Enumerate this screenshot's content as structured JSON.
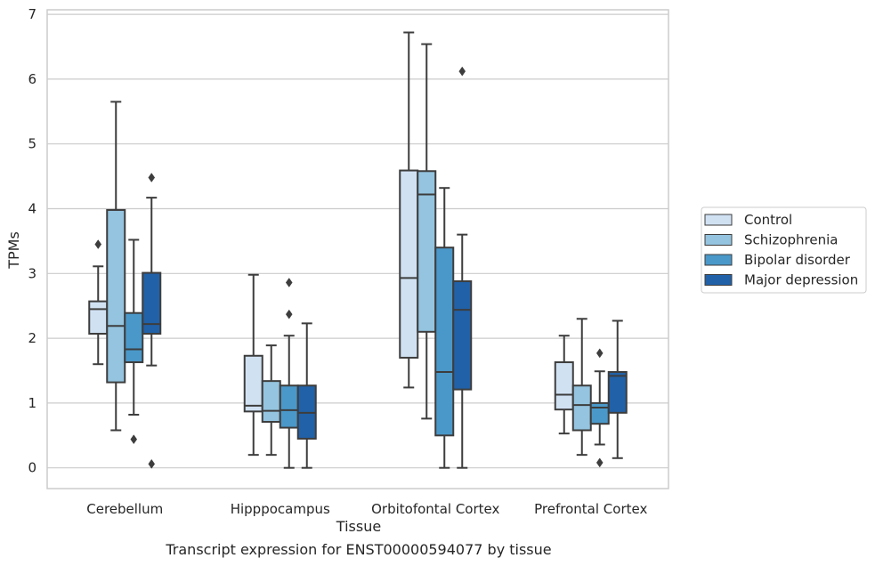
{
  "caption": "Transcript expression for ENST00000594077 by tissue",
  "chart_data": {
    "type": "box",
    "xlabel": "Tissue",
    "ylabel": "TPMs",
    "ylim": [
      -0.32,
      7.07
    ],
    "yticks": [
      "0",
      "1",
      "2",
      "3",
      "4",
      "5",
      "6",
      "7"
    ],
    "grid": "horizontal",
    "legend_position": "right",
    "categories": [
      "Cerebellum",
      "Hipppocampus",
      "Orbitofontal Cortex",
      "Prefrontal Cortex"
    ],
    "series": [
      {
        "name": "Control",
        "color": "#d0e1f2",
        "boxes": [
          {
            "whislo": 1.6,
            "q1": 2.07,
            "med": 2.45,
            "q3": 2.57,
            "whishi": 3.11,
            "fliers": [
              3.45
            ]
          },
          {
            "whislo": 0.2,
            "q1": 0.87,
            "med": 0.96,
            "q3": 1.73,
            "whishi": 2.98,
            "fliers": []
          },
          {
            "whislo": 1.24,
            "q1": 1.7,
            "med": 2.93,
            "q3": 4.59,
            "whishi": 6.72,
            "fliers": []
          },
          {
            "whislo": 0.53,
            "q1": 0.9,
            "med": 1.13,
            "q3": 1.63,
            "whishi": 2.04,
            "fliers": []
          }
        ]
      },
      {
        "name": "Schizophrenia",
        "color": "#94c4df",
        "boxes": [
          {
            "whislo": 0.58,
            "q1": 1.32,
            "med": 2.19,
            "q3": 3.98,
            "whishi": 5.65,
            "fliers": []
          },
          {
            "whislo": 0.2,
            "q1": 0.71,
            "med": 0.88,
            "q3": 1.34,
            "whishi": 1.89,
            "fliers": []
          },
          {
            "whislo": 0.76,
            "q1": 2.1,
            "med": 4.22,
            "q3": 4.58,
            "whishi": 6.54,
            "fliers": []
          },
          {
            "whislo": 0.2,
            "q1": 0.58,
            "med": 0.97,
            "q3": 1.27,
            "whishi": 2.3,
            "fliers": []
          }
        ]
      },
      {
        "name": "Bipolar disorder",
        "color": "#4a98c9",
        "boxes": [
          {
            "whislo": 0.82,
            "q1": 1.63,
            "med": 1.83,
            "q3": 2.39,
            "whishi": 3.52,
            "fliers": [
              0.44
            ]
          },
          {
            "whislo": 0.0,
            "q1": 0.62,
            "med": 0.89,
            "q3": 1.27,
            "whishi": 2.04,
            "fliers": [
              2.37,
              2.86
            ]
          },
          {
            "whislo": 0.0,
            "q1": 0.5,
            "med": 1.48,
            "q3": 3.4,
            "whishi": 4.32,
            "fliers": []
          },
          {
            "whislo": 0.36,
            "q1": 0.68,
            "med": 0.93,
            "q3": 1.0,
            "whishi": 1.49,
            "fliers": [
              0.08,
              1.77
            ]
          }
        ]
      },
      {
        "name": "Major depression",
        "color": "#2161a8",
        "boxes": [
          {
            "whislo": 1.58,
            "q1": 2.07,
            "med": 2.22,
            "q3": 3.01,
            "whishi": 4.17,
            "fliers": [
              0.06,
              4.48
            ]
          },
          {
            "whislo": 0.0,
            "q1": 0.45,
            "med": 0.85,
            "q3": 1.27,
            "whishi": 2.23,
            "fliers": []
          },
          {
            "whislo": 0.0,
            "q1": 1.21,
            "med": 2.44,
            "q3": 2.88,
            "whishi": 3.6,
            "fliers": [
              6.12
            ]
          },
          {
            "whislo": 0.15,
            "q1": 0.85,
            "med": 1.42,
            "q3": 1.48,
            "whishi": 2.27,
            "fliers": []
          }
        ]
      }
    ]
  }
}
